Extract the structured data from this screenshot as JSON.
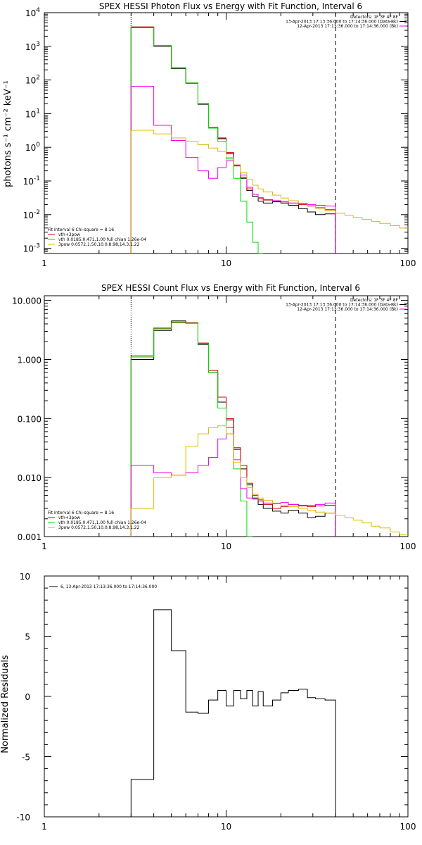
{
  "chart_data": [
    {
      "type": "line",
      "title": "SPEX HESSI Photon Flux vs Energy with Fit Function, Interval 6",
      "ylabel": "photons s⁻¹ cm⁻² keV⁻¹",
      "xlabel": "",
      "xscale": "log",
      "yscale": "log",
      "xlim": [
        1,
        100
      ],
      "ylim": [
        0.0007,
        10000
      ],
      "x_ticks": [
        {
          "v": 1,
          "label": "1"
        },
        {
          "v": 10,
          "label": "10"
        },
        {
          "v": 100,
          "label": "100"
        }
      ],
      "y_ticks": [
        {
          "v": 10000,
          "base": "10",
          "exp": "4"
        },
        {
          "v": 1000,
          "base": "10",
          "exp": "3"
        },
        {
          "v": 100,
          "base": "10",
          "exp": "2"
        },
        {
          "v": 10,
          "base": "10",
          "exp": "1"
        },
        {
          "v": 1,
          "base": "10",
          "exp": "0"
        },
        {
          "v": 0.1,
          "base": "10",
          "exp": "-1"
        },
        {
          "v": 0.01,
          "base": "10",
          "exp": "-2"
        },
        {
          "v": 0.001,
          "base": "10",
          "exp": "-3"
        }
      ],
      "vlines": [
        {
          "x": 3,
          "style": "dotted"
        },
        {
          "x": 40,
          "style": "dashed"
        }
      ],
      "legend_top": [
        "Detectors: 1F 3F 4F 8F",
        "13-Apr-2013 17:13:36.000 to 17:14:36.000 (Data-Bk)",
        "12-Apr-2013 17:13:36.000 to 17:14:36.000 (Bk)"
      ],
      "legend_bottom": [
        "Fit Interval 6   Chi-square = 8.16",
        "vth+3pow",
        "vth 0.0185,0.471,1.00  full chian 1.26e-04",
        "3pow 0.0572,1.50,10.0,8.98,14.3,1.22"
      ],
      "edges": [
        3,
        4,
        5,
        6,
        7,
        8,
        9,
        10,
        11,
        12,
        13,
        14,
        15,
        16,
        18,
        20,
        22,
        25,
        28,
        31,
        35,
        40,
        45,
        50,
        56,
        63,
        70,
        80,
        90,
        100
      ],
      "series": [
        {
          "color": "#000000",
          "x0": 3,
          "x1": 40,
          "values": [
            3600,
            1000,
            220,
            80,
            19,
            3.8,
            1.8,
            0.65,
            0.28,
            0.12,
            0.052,
            0.034,
            0.025,
            0.022,
            0.024,
            0.022,
            0.019,
            0.015,
            0.012,
            0.01,
            0.0105
          ]
        },
        {
          "color": "#cc0000",
          "x0": 3,
          "x1": 40,
          "values": [
            3800,
            1050,
            230,
            82,
            20,
            3.9,
            1.9,
            0.7,
            0.3,
            0.13,
            0.058,
            0.04,
            0.03,
            0.027,
            0.025,
            0.024,
            0.022,
            0.02,
            0.018,
            0.016,
            0.014
          ]
        },
        {
          "color": "#00dd00",
          "x0": 3,
          "x1": 16,
          "values": [
            3700,
            1050,
            230,
            82,
            19.5,
            3.7,
            1.5,
            0.45,
            0.12,
            0.025,
            0.006,
            0.0015,
            0.0004
          ]
        },
        {
          "color": "#ee00ee",
          "x0": 3,
          "x1": 40,
          "values": [
            65,
            4.5,
            1.6,
            0.5,
            0.2,
            0.12,
            0.25,
            0.4,
            0.3,
            0.15,
            0.065,
            0.04,
            0.032,
            0.028,
            0.026,
            0.024,
            0.022,
            0.021,
            0.02,
            0.019,
            0.018
          ]
        },
        {
          "color": "#ddbb00",
          "x0": 3,
          "x1": 100,
          "values": [
            3.2,
            2.5,
            1.9,
            1.5,
            1.2,
            0.95,
            0.75,
            0.5,
            0.3,
            0.18,
            0.11,
            0.075,
            0.058,
            0.047,
            0.038,
            0.031,
            0.026,
            0.022,
            0.0185,
            0.0155,
            0.013,
            0.011,
            0.0095,
            0.0083,
            0.0072,
            0.0063,
            0.0055,
            0.0047,
            0.004
          ]
        }
      ]
    },
    {
      "type": "line",
      "title": "SPEX HESSI Count Flux vs Energy with Fit Function, Interval 6",
      "ylabel": "",
      "xlabel": "",
      "xscale": "log",
      "yscale": "log",
      "xlim": [
        1,
        100
      ],
      "ylim": [
        0.001,
        12
      ],
      "x_ticks": [
        {
          "v": 1,
          "label": "1"
        },
        {
          "v": 10,
          "label": "10"
        },
        {
          "v": 100,
          "label": "100"
        }
      ],
      "y_ticks": [
        {
          "v": 10,
          "label": "10.000"
        },
        {
          "v": 1,
          "label": "1.000"
        },
        {
          "v": 0.1,
          "label": "0.100"
        },
        {
          "v": 0.01,
          "label": "0.010"
        },
        {
          "v": 0.001,
          "label": "0.001"
        }
      ],
      "vlines": [
        {
          "x": 3,
          "style": "dotted"
        },
        {
          "x": 40,
          "style": "dashed"
        }
      ],
      "legend_top": [
        "Detectors: 1F 3F 4F 8F",
        "13-Apr-2013 17:13:36.000 to 17:14:36.000 (Data-Bk)",
        "12-Apr-2013 17:13:36.000 to 17:14:36.000 (Bk)"
      ],
      "legend_bottom": [
        "Fit Interval 6   Chi-square = 8.16",
        "vth+3pow",
        "vth 0.0185,0.471,1.00  full chian 1.26e-04",
        "3pow 0.0572,1.50,10.0,8.98,14.3,1.22"
      ],
      "edges": [
        3,
        4,
        5,
        6,
        7,
        8,
        9,
        10,
        11,
        12,
        13,
        14,
        15,
        16,
        18,
        20,
        22,
        25,
        28,
        31,
        35,
        40,
        45,
        50,
        56,
        63,
        70,
        80,
        90,
        100
      ],
      "series": [
        {
          "color": "#000000",
          "x0": 3,
          "x1": 40,
          "values": [
            1.0,
            3.1,
            4.5,
            4.1,
            1.8,
            0.6,
            0.19,
            0.095,
            0.03,
            0.014,
            0.0075,
            0.0045,
            0.0035,
            0.003,
            0.0027,
            0.0025,
            0.0028,
            0.0025,
            0.0021,
            0.0022,
            0.0025
          ]
        },
        {
          "color": "#cc0000",
          "x0": 3,
          "x1": 40,
          "values": [
            1.15,
            3.4,
            4.3,
            4.2,
            1.9,
            0.65,
            0.23,
            0.1,
            0.032,
            0.016,
            0.008,
            0.005,
            0.004,
            0.0035,
            0.003,
            0.0032,
            0.0035,
            0.0033,
            0.0032,
            0.0033,
            0.0034
          ]
        },
        {
          "color": "#00dd00",
          "x0": 3,
          "x1": 14,
          "values": [
            1.1,
            3.3,
            4.2,
            4.1,
            1.85,
            0.6,
            0.15,
            0.055,
            0.014,
            0.004,
            0.001
          ]
        },
        {
          "color": "#ee00ee",
          "x0": 3,
          "x1": 40,
          "values": [
            0.016,
            0.012,
            0.011,
            0.012,
            0.016,
            0.022,
            0.045,
            0.07,
            0.02,
            0.0065,
            0.0045,
            0.0043,
            0.0042,
            0.0037,
            0.0036,
            0.0038,
            0.0035,
            0.0034,
            0.0034,
            0.0035,
            0.0037
          ]
        },
        {
          "color": "#ddbb00",
          "x0": 3,
          "x1": 100,
          "values": [
            0.003,
            0.01,
            0.011,
            0.034,
            0.055,
            0.07,
            0.075,
            0.055,
            0.018,
            0.01,
            0.0068,
            0.0052,
            0.0045,
            0.0041,
            0.0037,
            0.0034,
            0.0032,
            0.003,
            0.0028,
            0.0026,
            0.0025,
            0.0023,
            0.0021,
            0.0019,
            0.0017,
            0.0015,
            0.0014,
            0.0012,
            0.0011
          ]
        }
      ]
    },
    {
      "type": "line",
      "title": "",
      "ylabel": "Normalized Residuals",
      "xlabel": "",
      "xscale": "log",
      "yscale": "linear",
      "xlim": [
        1,
        100
      ],
      "ylim": [
        -10,
        10
      ],
      "x_ticks": [
        {
          "v": 1,
          "label": "1"
        },
        {
          "v": 10,
          "label": "10"
        },
        {
          "v": 100,
          "label": "100"
        }
      ],
      "y_ticks": [
        {
          "v": 10,
          "label": "10"
        },
        {
          "v": 5,
          "label": "5"
        },
        {
          "v": 0,
          "label": "0"
        },
        {
          "v": -5,
          "label": "-5"
        },
        {
          "v": -10,
          "label": "-10"
        }
      ],
      "legend": "6, 13-Apr-2013 17:13:36.000 to 17:14:36.000",
      "series": [
        {
          "color": "#000000",
          "edges": [
            3,
            4,
            5,
            6,
            7,
            8,
            9,
            10,
            11,
            12,
            13,
            14,
            15,
            16,
            18,
            20,
            22,
            25,
            28,
            31,
            35,
            40
          ],
          "values": [
            -6.9,
            7.2,
            3.8,
            -1.3,
            -1.4,
            -0.3,
            0.5,
            -0.8,
            0.5,
            -0.2,
            0.5,
            -0.8,
            0.4,
            -0.8,
            -0.3,
            0.3,
            0.5,
            0.6,
            -0.1,
            -0.2,
            -0.3
          ]
        }
      ]
    }
  ]
}
